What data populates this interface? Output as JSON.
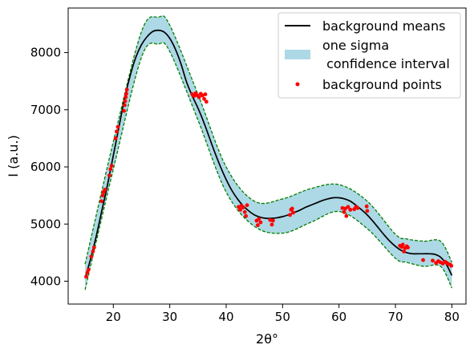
{
  "chart_data": {
    "type": "line",
    "title": "",
    "xlabel": "2θ°",
    "ylabel": "I (a.u.)",
    "xlim": [
      12,
      82.5
    ],
    "ylim": [
      3600,
      8780
    ],
    "grid": false,
    "legend_placement": "top-right",
    "x_ticks": [
      20,
      30,
      40,
      50,
      60,
      70,
      80
    ],
    "y_ticks": [
      4000,
      5000,
      6000,
      7000,
      8000
    ],
    "colors": {
      "mean": "#000000",
      "band": "#add8e6",
      "band_edge": "#008000",
      "points": "#ff0000"
    },
    "legend": [
      {
        "kind": "line",
        "label": "background means"
      },
      {
        "kind": "patch",
        "label_lines": [
          "one sigma",
          " confidence interval"
        ]
      },
      {
        "kind": "points",
        "label": "background points"
      }
    ],
    "series": [
      {
        "name": "background means",
        "x": [
          15,
          16,
          17,
          18,
          19,
          20,
          21,
          22,
          23,
          24,
          25,
          26,
          27,
          28,
          29,
          30,
          31,
          32,
          33,
          34,
          35,
          36,
          37,
          38,
          39,
          40,
          41,
          42,
          43,
          44,
          45,
          46,
          47,
          48,
          49,
          50,
          51,
          52,
          53,
          54,
          55,
          56,
          57,
          58,
          59,
          60,
          61,
          62,
          63,
          64,
          65,
          66,
          67,
          68,
          69,
          70,
          71,
          72,
          73,
          74,
          75,
          76,
          77,
          78,
          79,
          80
        ],
        "values": [
          4050,
          4400,
          4800,
          5250,
          5700,
          6200,
          6700,
          7200,
          7600,
          7920,
          8140,
          8280,
          8370,
          8390,
          8360,
          8250,
          8060,
          7800,
          7480,
          7240,
          7030,
          6790,
          6520,
          6250,
          6000,
          5780,
          5590,
          5440,
          5320,
          5230,
          5160,
          5120,
          5100,
          5100,
          5110,
          5130,
          5160,
          5200,
          5240,
          5290,
          5330,
          5370,
          5410,
          5440,
          5460,
          5460,
          5440,
          5400,
          5330,
          5250,
          5160,
          5050,
          4930,
          4810,
          4700,
          4610,
          4540,
          4500,
          4480,
          4480,
          4480,
          4480,
          4470,
          4420,
          4300,
          4100
        ]
      },
      {
        "name": "one sigma confidence interval",
        "x": [
          15,
          20,
          25,
          28,
          30,
          35,
          40,
          45,
          50,
          55,
          60,
          65,
          70,
          72,
          75,
          78,
          80
        ],
        "lower": [
          3850,
          5960,
          7920,
          8150,
          8020,
          6820,
          5560,
          4960,
          4840,
          5030,
          5220,
          4920,
          4400,
          4330,
          4260,
          4260,
          3880
        ],
        "upper": [
          4300,
          6440,
          8370,
          8620,
          8480,
          7270,
          6000,
          5400,
          5440,
          5620,
          5690,
          5400,
          4820,
          4740,
          4700,
          4700,
          4330
        ]
      }
    ],
    "background_points": [
      [
        15.2,
        4080
      ],
      [
        15.4,
        4150
      ],
      [
        15.6,
        4200
      ],
      [
        16.1,
        4430
      ],
      [
        16.4,
        4520
      ],
      [
        16.6,
        4590
      ],
      [
        17.9,
        5400
      ],
      [
        18.1,
        5500
      ],
      [
        18.3,
        5560
      ],
      [
        18.5,
        5600
      ],
      [
        19.3,
        5850
      ],
      [
        19.5,
        5960
      ],
      [
        19.7,
        6020
      ],
      [
        20.4,
        6500
      ],
      [
        20.6,
        6620
      ],
      [
        20.8,
        6700
      ],
      [
        21.9,
        6980
      ],
      [
        22.0,
        7080
      ],
      [
        22.1,
        7150
      ],
      [
        22.2,
        7220
      ],
      [
        22.3,
        7280
      ],
      [
        22.4,
        7350
      ],
      [
        34.0,
        7270
      ],
      [
        34.3,
        7240
      ],
      [
        34.6,
        7290
      ],
      [
        34.9,
        7250
      ],
      [
        35.2,
        7220
      ],
      [
        35.5,
        7280
      ],
      [
        35.8,
        7250
      ],
      [
        36.1,
        7190
      ],
      [
        36.3,
        7270
      ],
      [
        36.5,
        7140
      ],
      [
        42.2,
        5300
      ],
      [
        42.5,
        5250
      ],
      [
        42.7,
        5320
      ],
      [
        43.0,
        5290
      ],
      [
        43.3,
        5210
      ],
      [
        43.5,
        5140
      ],
      [
        43.7,
        5330
      ],
      [
        45.4,
        5060
      ],
      [
        45.6,
        4980
      ],
      [
        45.8,
        5090
      ],
      [
        46.1,
        5030
      ],
      [
        47.8,
        5070
      ],
      [
        48.1,
        4990
      ],
      [
        48.3,
        5060
      ],
      [
        51.3,
        5160
      ],
      [
        51.5,
        5250
      ],
      [
        51.7,
        5270
      ],
      [
        51.9,
        5200
      ],
      [
        60.6,
        5280
      ],
      [
        60.9,
        5210
      ],
      [
        61.1,
        5270
      ],
      [
        61.3,
        5140
      ],
      [
        61.6,
        5300
      ],
      [
        62.0,
        5250
      ],
      [
        62.7,
        5260
      ],
      [
        63.0,
        5300
      ],
      [
        63.3,
        5280
      ],
      [
        64.9,
        5310
      ],
      [
        65.0,
        5230
      ],
      [
        70.8,
        4620
      ],
      [
        71.1,
        4600
      ],
      [
        71.3,
        4640
      ],
      [
        71.5,
        4520
      ],
      [
        71.7,
        4580
      ],
      [
        72.0,
        4610
      ],
      [
        72.2,
        4590
      ],
      [
        74.9,
        4370
      ],
      [
        76.6,
        4360
      ],
      [
        77.2,
        4320
      ],
      [
        77.6,
        4350
      ],
      [
        78.0,
        4330
      ],
      [
        78.4,
        4310
      ],
      [
        78.8,
        4340
      ],
      [
        79.1,
        4320
      ],
      [
        79.4,
        4300
      ],
      [
        79.7,
        4290
      ],
      [
        79.9,
        4270
      ]
    ]
  }
}
